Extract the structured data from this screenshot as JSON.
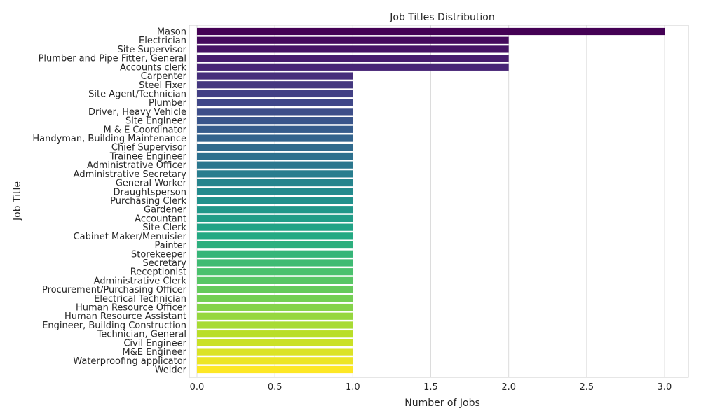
{
  "chart_data": {
    "type": "bar",
    "orientation": "horizontal",
    "title": "Job Titles Distribution",
    "xlabel": "Number of Jobs",
    "ylabel": "Job Title",
    "xlim": [
      0,
      3.15
    ],
    "xticks": [
      0.0,
      0.5,
      1.0,
      1.5,
      2.0,
      2.5,
      3.0
    ],
    "xtick_labels": [
      "0.0",
      "0.5",
      "1.0",
      "1.5",
      "2.0",
      "2.5",
      "3.0"
    ],
    "grid": "vertical",
    "palette": "viridis",
    "categories": [
      "Mason",
      "Electrician",
      "Site Supervisor",
      "Plumber and Pipe Fitter, General",
      "Accounts clerk",
      "Carpenter",
      "Steel Fixer",
      "Site Agent/Technician",
      "Plumber",
      "Driver, Heavy Vehicle",
      "Site Engineer",
      "M & E Coordinator",
      "Handyman, Building Maintenance",
      "Chief Supervisor",
      "Trainee Engineer",
      "Administrative Officer",
      "Administrative Secretary",
      "General Worker",
      "Draughtsperson",
      "Purchasing Clerk",
      "Gardener",
      "Accountant",
      "Site Clerk",
      "Cabinet Maker/Menuisier",
      "Painter",
      "Storekeeper",
      "Secretary",
      "Receptionist",
      "Administrative Clerk",
      "Procurement/Purchasing Officer",
      "Electrical Technician",
      "Human Resource Officer",
      "Human Resource Assistant",
      "Engineer, Building Construction",
      "Technician, General",
      "Civil Engineer",
      "M&E Engineer",
      "Waterproofing applicator",
      "Welder"
    ],
    "values": [
      3,
      2,
      2,
      2,
      2,
      1,
      1,
      1,
      1,
      1,
      1,
      1,
      1,
      1,
      1,
      1,
      1,
      1,
      1,
      1,
      1,
      1,
      1,
      1,
      1,
      1,
      1,
      1,
      1,
      1,
      1,
      1,
      1,
      1,
      1,
      1,
      1,
      1,
      1
    ]
  }
}
